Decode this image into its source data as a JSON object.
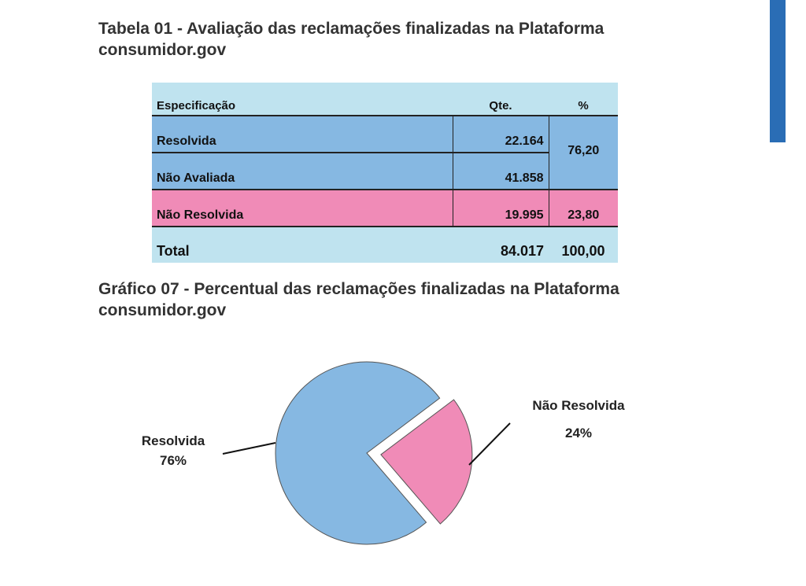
{
  "table_title": "Tabela 01 - Avaliação das reclamações finalizadas na Plataforma consumidor.gov",
  "table": {
    "headers": [
      "Especificação",
      "Qte.",
      "%"
    ],
    "rows": [
      {
        "label": "Resolvida",
        "qte": "22.164"
      },
      {
        "label": "Não Avaliada",
        "qte": "41.858"
      },
      {
        "label": "Não Resolvida",
        "qte": "19.995",
        "pct": "23,80"
      }
    ],
    "merged_pct": "76,20",
    "total": {
      "label": "Total",
      "qte": "84.017",
      "pct": "100,00"
    },
    "colors": {
      "header": "#bfe3ef",
      "blue": "#86b8e2",
      "pink": "#f08bb7"
    }
  },
  "chart_title": "Gráfico 07 - Percentual das reclamações finalizadas na Plataforma consumidor.gov",
  "chart_data": {
    "type": "pie",
    "title": "Gráfico 07 - Percentual das reclamações finalizadas na Plataforma consumidor.gov",
    "slices": [
      {
        "label": "Resolvida",
        "value": 76,
        "display": "76%",
        "color": "#86b8e2",
        "exploded": false
      },
      {
        "label": "Não Resolvida",
        "value": 24,
        "display": "24%",
        "color": "#f08bb7",
        "exploded": true
      }
    ]
  }
}
